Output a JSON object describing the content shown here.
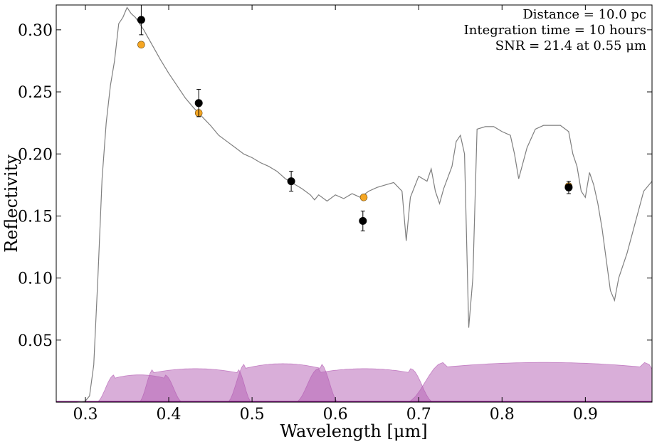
{
  "chart_data": {
    "type": "scatter",
    "xlabel": "Wavelength [μm]",
    "ylabel": "Reflectivity",
    "xlim": [
      0.265,
      0.98
    ],
    "ylim": [
      0.0,
      0.32
    ],
    "x_ticks": [
      0.3,
      0.4,
      0.5,
      0.6,
      0.7,
      0.8,
      0.9
    ],
    "x_tick_labels": [
      "0.3",
      "0.4",
      "0.5",
      "0.6",
      "0.7",
      "0.8",
      "0.9"
    ],
    "y_ticks": [
      0.05,
      0.1,
      0.15,
      0.2,
      0.25,
      0.3
    ],
    "y_tick_labels": [
      "0.05",
      "0.10",
      "0.15",
      "0.20",
      "0.25",
      "0.30"
    ],
    "grid": false,
    "annotations": [
      "Distance = 10.0 pc",
      "Integration time = 10 hours",
      "SNR = 21.4 at 0.55 μm"
    ],
    "colors": {
      "spectrum": "#7f7f7f",
      "model_points": "#f5a623",
      "observed_points": "#000000",
      "filters": "#b35eb3"
    },
    "series": [
      {
        "type": "line",
        "points": [
          [
            0.265,
            0.0
          ],
          [
            0.29,
            0.0
          ],
          [
            0.3,
            0.001
          ],
          [
            0.305,
            0.005
          ],
          [
            0.31,
            0.03
          ],
          [
            0.315,
            0.1
          ],
          [
            0.32,
            0.18
          ],
          [
            0.325,
            0.225
          ],
          [
            0.33,
            0.255
          ],
          [
            0.335,
            0.275
          ],
          [
            0.34,
            0.305
          ],
          [
            0.345,
            0.31
          ],
          [
            0.35,
            0.318
          ],
          [
            0.355,
            0.313
          ],
          [
            0.36,
            0.31
          ],
          [
            0.365,
            0.305
          ],
          [
            0.37,
            0.3
          ],
          [
            0.38,
            0.288
          ],
          [
            0.39,
            0.276
          ],
          [
            0.4,
            0.265
          ],
          [
            0.41,
            0.255
          ],
          [
            0.42,
            0.245
          ],
          [
            0.43,
            0.237
          ],
          [
            0.44,
            0.23
          ],
          [
            0.45,
            0.223
          ],
          [
            0.46,
            0.215
          ],
          [
            0.47,
            0.21
          ],
          [
            0.48,
            0.205
          ],
          [
            0.49,
            0.2
          ],
          [
            0.5,
            0.197
          ],
          [
            0.51,
            0.193
          ],
          [
            0.52,
            0.19
          ],
          [
            0.53,
            0.186
          ],
          [
            0.54,
            0.18
          ],
          [
            0.55,
            0.176
          ],
          [
            0.56,
            0.172
          ],
          [
            0.57,
            0.167
          ],
          [
            0.575,
            0.163
          ],
          [
            0.58,
            0.167
          ],
          [
            0.59,
            0.162
          ],
          [
            0.6,
            0.167
          ],
          [
            0.61,
            0.164
          ],
          [
            0.62,
            0.168
          ],
          [
            0.63,
            0.165
          ],
          [
            0.64,
            0.17
          ],
          [
            0.65,
            0.173
          ],
          [
            0.66,
            0.175
          ],
          [
            0.67,
            0.177
          ],
          [
            0.68,
            0.17
          ],
          [
            0.685,
            0.13
          ],
          [
            0.69,
            0.165
          ],
          [
            0.7,
            0.182
          ],
          [
            0.71,
            0.178
          ],
          [
            0.715,
            0.188
          ],
          [
            0.72,
            0.17
          ],
          [
            0.725,
            0.16
          ],
          [
            0.73,
            0.172
          ],
          [
            0.74,
            0.19
          ],
          [
            0.745,
            0.21
          ],
          [
            0.75,
            0.215
          ],
          [
            0.755,
            0.2
          ],
          [
            0.76,
            0.06
          ],
          [
            0.765,
            0.1
          ],
          [
            0.77,
            0.22
          ],
          [
            0.78,
            0.222
          ],
          [
            0.79,
            0.222
          ],
          [
            0.8,
            0.218
          ],
          [
            0.81,
            0.215
          ],
          [
            0.815,
            0.2
          ],
          [
            0.82,
            0.18
          ],
          [
            0.83,
            0.205
          ],
          [
            0.84,
            0.22
          ],
          [
            0.85,
            0.223
          ],
          [
            0.86,
            0.223
          ],
          [
            0.87,
            0.223
          ],
          [
            0.88,
            0.218
          ],
          [
            0.885,
            0.2
          ],
          [
            0.89,
            0.19
          ],
          [
            0.895,
            0.17
          ],
          [
            0.9,
            0.165
          ],
          [
            0.905,
            0.185
          ],
          [
            0.91,
            0.175
          ],
          [
            0.915,
            0.16
          ],
          [
            0.92,
            0.14
          ],
          [
            0.93,
            0.09
          ],
          [
            0.935,
            0.082
          ],
          [
            0.94,
            0.1
          ],
          [
            0.95,
            0.12
          ],
          [
            0.96,
            0.145
          ],
          [
            0.97,
            0.17
          ],
          [
            0.98,
            0.178
          ]
        ]
      },
      {
        "type": "scatter",
        "points": [
          [
            0.367,
            0.288
          ],
          [
            0.436,
            0.233
          ],
          [
            0.634,
            0.165
          ],
          [
            0.88,
            0.174
          ]
        ]
      },
      {
        "type": "scatter",
        "points": [
          [
            0.367,
            0.308
          ],
          [
            0.436,
            0.241
          ],
          [
            0.547,
            0.178
          ],
          [
            0.633,
            0.146
          ],
          [
            0.88,
            0.173
          ]
        ],
        "error": [
          0.012,
          0.011,
          0.008,
          0.008,
          0.005
        ]
      }
    ],
    "filters": [
      {
        "center": 0.365,
        "halfwidth": 0.03,
        "edge": 0.022,
        "height": 0.022
      },
      {
        "center": 0.432,
        "halfwidth": 0.05,
        "edge": 0.018,
        "height": 0.027
      },
      {
        "center": 0.537,
        "halfwidth": 0.045,
        "edge": 0.022,
        "height": 0.031
      },
      {
        "center": 0.635,
        "halfwidth": 0.055,
        "edge": 0.028,
        "height": 0.027
      },
      {
        "center": 0.85,
        "halfwidth": 0.12,
        "edge": 0.045,
        "height": 0.032
      }
    ]
  }
}
